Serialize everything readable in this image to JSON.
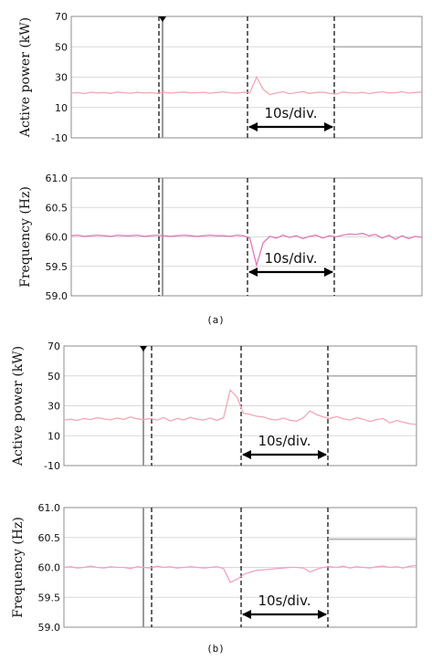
{
  "figure": {
    "caption_a": "(a)",
    "caption_b": "(b)"
  },
  "chart_data": [
    {
      "panel": "a-top",
      "type": "line",
      "ylabel": "Active power (kW)",
      "ylim": [
        -10,
        70
      ],
      "yticks": [
        "70",
        "50",
        "30",
        "10",
        "-10"
      ],
      "grid": true,
      "annotation": "10s/div.",
      "series": [
        {
          "color": "#f4a6b4",
          "values": [
            19.5,
            19.8,
            19.2,
            20.1,
            19.6,
            19.9,
            19.3,
            20.2,
            19.7,
            19.4,
            20.0,
            19.6,
            19.8,
            19.3,
            20.1,
            19.5,
            19.9,
            20.2,
            19.6,
            19.8,
            20.0,
            19.4,
            19.9,
            20.3,
            19.7,
            19.5,
            20.0,
            19.8,
            30.0,
            22.0,
            18.5,
            19.6,
            20.4,
            19.1,
            19.8,
            20.5,
            19.3,
            19.9,
            20.1,
            19.4,
            18.8,
            20.2,
            19.7,
            19.5,
            20.0,
            19.2,
            19.9,
            20.3,
            19.6,
            19.8,
            20.4,
            19.5,
            19.9,
            20.2
          ]
        },
        {
          "color": "#b0b0b0",
          "values": [
            null,
            null,
            null,
            null,
            null,
            null,
            null,
            null,
            null,
            null,
            null,
            null,
            null,
            null,
            null,
            null,
            null,
            null,
            null,
            null,
            null,
            null,
            null,
            null,
            null,
            null,
            null,
            null,
            null,
            null,
            null,
            null,
            null,
            null,
            null,
            null,
            null,
            null,
            null,
            null,
            null,
            50,
            50,
            50,
            50,
            50,
            50,
            50,
            50,
            50,
            50,
            50,
            50,
            50
          ]
        }
      ]
    },
    {
      "panel": "a-bottom",
      "type": "line",
      "ylabel": "Frequency (Hz)",
      "ylim": [
        59.0,
        61.0
      ],
      "yticks": [
        "61.0",
        "60.5",
        "60.0",
        "59.5",
        "59.0"
      ],
      "grid": true,
      "annotation": "10s/div.",
      "series": [
        {
          "color": "#e07ab8",
          "values": [
            60.02,
            60.03,
            60.01,
            60.02,
            60.03,
            60.02,
            60.01,
            60.03,
            60.02,
            60.02,
            60.03,
            60.01,
            60.02,
            60.03,
            60.02,
            60.01,
            60.02,
            60.03,
            60.02,
            60.01,
            60.02,
            60.03,
            60.02,
            60.02,
            60.01,
            60.03,
            60.02,
            59.98,
            59.52,
            59.9,
            60.01,
            59.98,
            60.03,
            59.99,
            60.02,
            59.97,
            60.01,
            60.03,
            59.98,
            60.02,
            60.0,
            60.03,
            60.05,
            60.04,
            60.06,
            60.02,
            60.04,
            59.98,
            60.03,
            59.96,
            60.02,
            59.97,
            60.01,
            59.99
          ]
        }
      ]
    },
    {
      "panel": "b-top",
      "type": "line",
      "ylabel": "Active power (kW)",
      "ylim": [
        -10,
        70
      ],
      "yticks": [
        "70",
        "50",
        "30",
        "10",
        "-10"
      ],
      "grid": true,
      "annotation": "10s/div.",
      "series": [
        {
          "color": "#f4a6b4",
          "values": [
            20.5,
            21.0,
            20.2,
            21.5,
            20.8,
            22.0,
            21.2,
            20.6,
            21.8,
            20.9,
            22.5,
            21.3,
            20.7,
            21.6,
            20.4,
            22.1,
            19.8,
            21.5,
            20.6,
            22.3,
            21.0,
            20.5,
            21.8,
            20.2,
            22.0,
            40.5,
            36.0,
            25.0,
            24.2,
            23.0,
            22.5,
            21.0,
            20.5,
            21.8,
            20.2,
            19.8,
            22.0,
            26.5,
            24.0,
            22.5,
            21.5,
            22.8,
            21.2,
            20.5,
            22.0,
            21.0,
            19.5,
            20.8,
            21.5,
            18.5,
            20.2,
            19.0,
            18.0,
            17.5
          ]
        },
        {
          "color": "#b0b0b0",
          "values": [
            null,
            null,
            null,
            null,
            null,
            null,
            null,
            null,
            null,
            null,
            null,
            null,
            null,
            null,
            null,
            null,
            null,
            null,
            null,
            null,
            null,
            null,
            null,
            null,
            null,
            null,
            null,
            null,
            null,
            null,
            null,
            null,
            null,
            null,
            null,
            null,
            null,
            null,
            null,
            null,
            null,
            50,
            50,
            50,
            50,
            50,
            50,
            50,
            50,
            50,
            50,
            50,
            50,
            50
          ]
        }
      ]
    },
    {
      "panel": "b-bottom",
      "type": "line",
      "ylabel": "Frequency (Hz)",
      "ylim": [
        59.0,
        61.0
      ],
      "yticks": [
        "61.0",
        "60.5",
        "60.0",
        "59.5",
        "59.0"
      ],
      "grid": true,
      "annotation": "10s/div.",
      "series": [
        {
          "color": "#f2a0c8",
          "values": [
            60.0,
            60.01,
            59.99,
            60.0,
            60.02,
            60.0,
            59.99,
            60.01,
            60.0,
            60.0,
            59.98,
            60.01,
            60.0,
            59.99,
            60.02,
            60.0,
            60.01,
            59.99,
            60.0,
            60.01,
            60.0,
            59.99,
            60.0,
            60.01,
            59.98,
            59.75,
            59.8,
            59.88,
            59.92,
            59.95,
            59.96,
            59.97,
            59.98,
            59.99,
            60.0,
            60.0,
            59.99,
            59.92,
            59.97,
            60.0,
            60.01,
            60.0,
            60.02,
            59.99,
            60.01,
            60.0,
            59.99,
            60.01,
            60.02,
            60.0,
            60.01,
            59.99,
            60.02,
            60.03
          ]
        },
        {
          "color": "#b0b0b0",
          "values": [
            null,
            null,
            null,
            null,
            null,
            null,
            null,
            null,
            null,
            null,
            null,
            null,
            null,
            null,
            null,
            null,
            null,
            null,
            null,
            null,
            null,
            null,
            null,
            null,
            null,
            null,
            null,
            null,
            null,
            null,
            null,
            null,
            null,
            null,
            null,
            null,
            null,
            null,
            null,
            null,
            null,
            60.47,
            60.47,
            60.47,
            60.47,
            60.47,
            60.47,
            60.47,
            60.47,
            60.47,
            60.47,
            60.47,
            60.47,
            60.47
          ]
        }
      ]
    }
  ]
}
